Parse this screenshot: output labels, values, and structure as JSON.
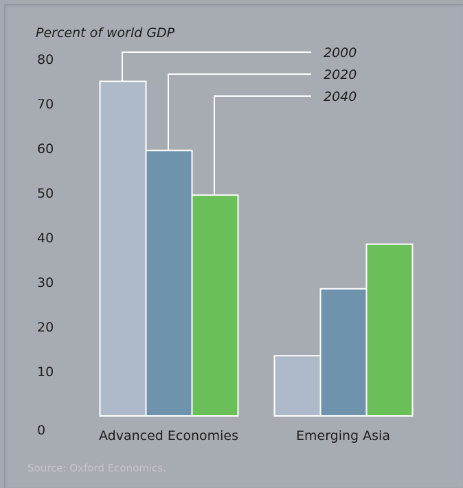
{
  "chart_data": {
    "type": "bar",
    "ylabel": "Percent of world GDP",
    "ylim": [
      0,
      80
    ],
    "yticks": [
      0,
      10,
      20,
      30,
      40,
      50,
      60,
      70,
      80
    ],
    "categories": [
      "Advanced Economies",
      "Emerging Asia"
    ],
    "series": [
      {
        "name": "2000",
        "values": [
          75,
          13.5
        ],
        "color": "#aebac9"
      },
      {
        "name": "2020",
        "values": [
          59.5,
          28.5
        ],
        "color": "#6f92ad"
      },
      {
        "name": "2040",
        "values": [
          49.5,
          38.5
        ],
        "color": "#6abf58"
      }
    ],
    "legend": "top-right, leader lines to bars",
    "grid": false
  },
  "source": "Source: Oxford Economics."
}
